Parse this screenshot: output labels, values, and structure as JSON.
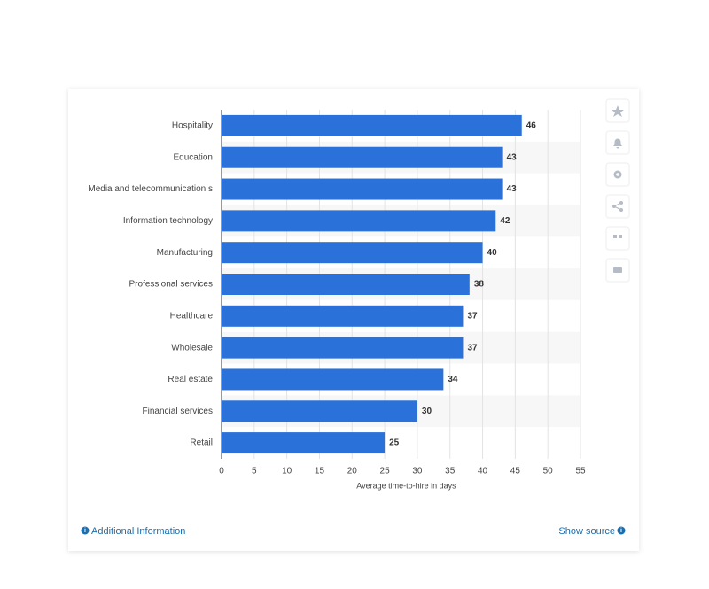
{
  "chart_data": {
    "type": "hbar",
    "categories": [
      "Hospitality",
      "Education",
      "Media and telecommunication s",
      "Information technology",
      "Manufacturing",
      "Professional services",
      "Healthcare",
      "Wholesale",
      "Real estate",
      "Financial services",
      "Retail"
    ],
    "values": [
      46,
      43,
      43,
      42,
      40,
      38,
      37,
      37,
      34,
      30,
      25
    ],
    "color": "#2a72d9",
    "xlim": [
      0,
      55
    ],
    "xticks": [
      0,
      5,
      10,
      15,
      20,
      25,
      30,
      35,
      40,
      45,
      50,
      55
    ],
    "xlabel": "Average time-to-hire in days",
    "grid": true
  },
  "footer": {
    "left": "Additional Information",
    "right": "Show source"
  }
}
